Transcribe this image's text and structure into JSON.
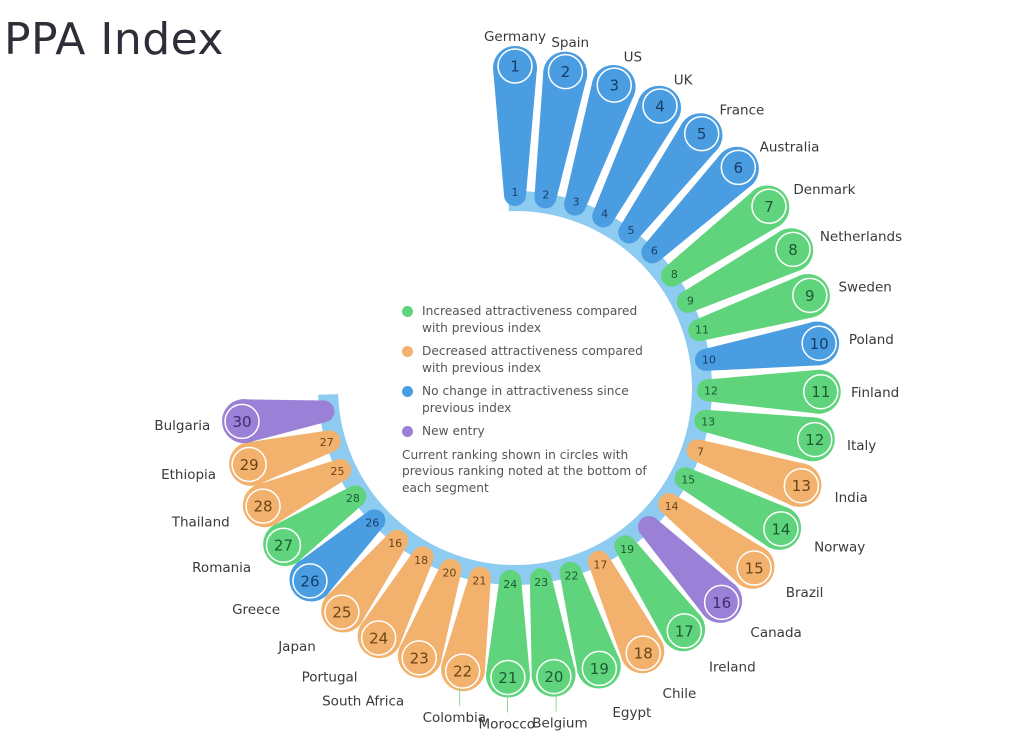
{
  "title": "PPA Index",
  "legend": {
    "items": [
      {
        "status": "increased",
        "label": "Increased attractiveness compared with previous index",
        "color": "#5fd47c"
      },
      {
        "status": "decreased",
        "label": "Decreased attractiveness compared with previous index",
        "color": "#f2b16c"
      },
      {
        "status": "unchanged",
        "label": "No change in attractiveness since previous index",
        "color": "#4b9de2"
      },
      {
        "status": "new",
        "label": "New entry",
        "color": "#9a80d6"
      }
    ],
    "note": "Current ranking shown in circles with previous ranking noted at the bottom of each segment"
  },
  "chart_data": {
    "type": "radial-bar",
    "title": "PPA Index",
    "ring_color": "#8ecbf0",
    "series": [
      {
        "rank": 1,
        "country": "Germany",
        "previous": "1",
        "status": "unchanged"
      },
      {
        "rank": 2,
        "country": "Spain",
        "previous": "2",
        "status": "unchanged"
      },
      {
        "rank": 3,
        "country": "US",
        "previous": "3",
        "status": "unchanged"
      },
      {
        "rank": 4,
        "country": "UK",
        "previous": "4",
        "status": "unchanged"
      },
      {
        "rank": 5,
        "country": "France",
        "previous": "5",
        "status": "unchanged"
      },
      {
        "rank": 6,
        "country": "Australia",
        "previous": "6",
        "status": "unchanged"
      },
      {
        "rank": 7,
        "country": "Denmark",
        "previous": "8",
        "status": "increased"
      },
      {
        "rank": 8,
        "country": "Netherlands",
        "previous": "9",
        "status": "increased"
      },
      {
        "rank": 9,
        "country": "Sweden",
        "previous": "11",
        "status": "increased"
      },
      {
        "rank": 10,
        "country": "Poland",
        "previous": "10",
        "status": "unchanged"
      },
      {
        "rank": 11,
        "country": "Finland",
        "previous": "12",
        "status": "increased"
      },
      {
        "rank": 12,
        "country": "Italy",
        "previous": "13",
        "status": "increased"
      },
      {
        "rank": 13,
        "country": "India",
        "previous": "7",
        "status": "decreased"
      },
      {
        "rank": 14,
        "country": "Norway",
        "previous": "15",
        "status": "increased"
      },
      {
        "rank": 15,
        "country": "Brazil",
        "previous": "14",
        "status": "decreased"
      },
      {
        "rank": 16,
        "country": "Canada",
        "previous": "",
        "status": "new"
      },
      {
        "rank": 17,
        "country": "Ireland",
        "previous": "19",
        "status": "increased"
      },
      {
        "rank": 18,
        "country": "Chile",
        "previous": "17",
        "status": "decreased"
      },
      {
        "rank": 19,
        "country": "Egypt",
        "previous": "22",
        "status": "increased"
      },
      {
        "rank": 20,
        "country": "Belgium",
        "previous": "23",
        "status": "increased"
      },
      {
        "rank": 21,
        "country": "Morocco",
        "previous": "24",
        "status": "increased"
      },
      {
        "rank": 22,
        "country": "Colombia",
        "previous": "21",
        "status": "decreased"
      },
      {
        "rank": 23,
        "country": "South Africa",
        "previous": "20",
        "status": "decreased"
      },
      {
        "rank": 24,
        "country": "Portugal",
        "previous": "18",
        "status": "decreased"
      },
      {
        "rank": 25,
        "country": "Japan",
        "previous": "16",
        "status": "decreased"
      },
      {
        "rank": 26,
        "country": "Greece",
        "previous": "26",
        "status": "unchanged"
      },
      {
        "rank": 27,
        "country": "Romania",
        "previous": "28",
        "status": "increased"
      },
      {
        "rank": 28,
        "country": "Thailand",
        "previous": "25",
        "status": "decreased"
      },
      {
        "rank": 29,
        "country": "Ethiopia",
        "previous": "27",
        "status": "decreased"
      },
      {
        "rank": 30,
        "country": "Bulgaria",
        "previous": "",
        "status": "new"
      }
    ]
  }
}
